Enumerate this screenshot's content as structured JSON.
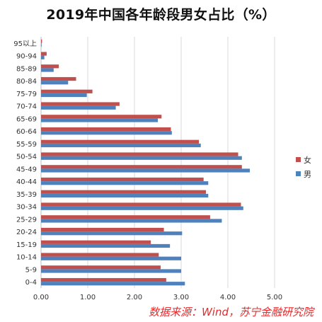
{
  "chart_data": {
    "type": "bar",
    "orientation": "horizontal",
    "title": "2019年中国各年龄段男女占比（%）",
    "xlabel": "",
    "ylabel": "",
    "xlim": [
      0,
      5
    ],
    "xticks": [
      "0.00",
      "1.00",
      "2.00",
      "3.00",
      "4.00",
      "5.00"
    ],
    "grid": "vertical gridlines",
    "legend_position": "right",
    "categories": [
      "95以上",
      "90-94",
      "85-89",
      "80-84",
      "75-79",
      "70-74",
      "65-69",
      "60-64",
      "55-59",
      "50-54",
      "45-49",
      "40-44",
      "35-39",
      "30-34",
      "25-29",
      "20-24",
      "15-19",
      "10-14",
      "5-9",
      "0-4"
    ],
    "series": [
      {
        "name": "女",
        "color": "#c0504d",
        "values": [
          0.02,
          0.12,
          0.38,
          0.75,
          1.1,
          1.68,
          2.58,
          2.78,
          3.38,
          4.22,
          4.3,
          3.48,
          3.53,
          4.28,
          3.62,
          2.63,
          2.35,
          2.52,
          2.56,
          2.68
        ]
      },
      {
        "name": "男",
        "color": "#4f81bd",
        "values": [
          0.01,
          0.07,
          0.27,
          0.58,
          0.98,
          1.6,
          2.5,
          2.8,
          3.42,
          4.3,
          4.47,
          3.58,
          3.58,
          4.33,
          3.87,
          3.02,
          2.76,
          3.0,
          3.0,
          3.08
        ]
      }
    ]
  },
  "source": "数据来源：Wind，苏宁金融研究院"
}
